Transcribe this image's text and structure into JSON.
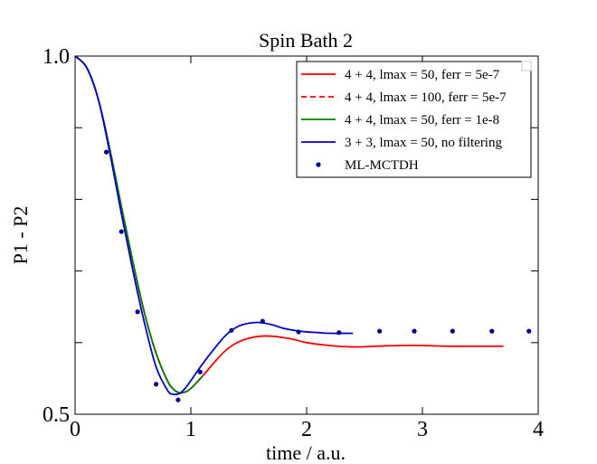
{
  "chart_data": {
    "type": "line",
    "title": "Spin Bath 2",
    "xlabel": "time / a.u.",
    "ylabel": "P1 - P2",
    "xlim": [
      0,
      4
    ],
    "ylim": [
      0.5,
      1.0
    ],
    "grid": false,
    "legend_position": "top-right",
    "x_ticks": [
      0,
      1,
      2,
      3,
      4
    ],
    "x_tick_labels": [
      "0",
      "1",
      "2",
      "3",
      "4"
    ],
    "y_ticks": [
      0.5,
      1.0
    ],
    "y_tick_labels": [
      "0.5",
      "1.0"
    ],
    "y_minor_ticks": [
      0.6,
      0.7,
      0.8,
      0.9
    ],
    "series": [
      {
        "name": "4 + 4, lmax = 50, ferr = 5e-7",
        "color": "#ff0000",
        "style": "solid",
        "x": [
          0,
          0.1,
          0.2,
          0.3,
          0.4,
          0.5,
          0.6,
          0.7,
          0.8,
          0.85,
          0.9,
          0.95,
          1.0,
          1.1,
          1.2,
          1.3,
          1.4,
          1.5,
          1.6,
          1.7,
          1.8,
          1.9,
          2.0,
          2.2,
          2.4,
          2.6,
          2.8,
          3.0,
          3.2,
          3.4,
          3.7
        ],
        "y": [
          1.0,
          0.984,
          0.94,
          0.87,
          0.79,
          0.712,
          0.641,
          0.585,
          0.546,
          0.535,
          0.53,
          0.531,
          0.536,
          0.553,
          0.572,
          0.589,
          0.6,
          0.606,
          0.609,
          0.609,
          0.607,
          0.604,
          0.6,
          0.596,
          0.594,
          0.595,
          0.596,
          0.596,
          0.595,
          0.595,
          0.595
        ]
      },
      {
        "name": "4 + 4, lmax = 100, ferr = 5e-7",
        "color": "#ff0000",
        "style": "dashed",
        "x": [
          0,
          0.1,
          0.2,
          0.3,
          0.4,
          0.5,
          0.6,
          0.7,
          0.8,
          0.85,
          0.9,
          0.95,
          1.0,
          1.1
        ],
        "y": [
          1.0,
          0.984,
          0.94,
          0.87,
          0.79,
          0.712,
          0.641,
          0.585,
          0.546,
          0.535,
          0.53,
          0.531,
          0.536,
          0.553
        ]
      },
      {
        "name": "4 + 4, lmax = 50, ferr = 1e-8",
        "color": "#008000",
        "style": "solid",
        "x": [
          0,
          0.1,
          0.2,
          0.3,
          0.4,
          0.5,
          0.6,
          0.7,
          0.8,
          0.85,
          0.9,
          0.95,
          1.0,
          1.1
        ],
        "y": [
          1.0,
          0.984,
          0.94,
          0.87,
          0.79,
          0.712,
          0.641,
          0.585,
          0.546,
          0.535,
          0.53,
          0.531,
          0.536,
          0.553
        ]
      },
      {
        "name": "3 + 3, lmax = 50, no filtering",
        "color": "#0000cd",
        "style": "solid",
        "x": [
          0,
          0.1,
          0.2,
          0.3,
          0.4,
          0.5,
          0.6,
          0.7,
          0.8,
          0.85,
          0.9,
          0.95,
          1.0,
          1.1,
          1.2,
          1.3,
          1.4,
          1.5,
          1.6,
          1.7,
          1.8,
          1.9,
          2.0,
          2.1,
          2.2,
          2.4
        ],
        "y": [
          1.0,
          0.984,
          0.94,
          0.865,
          0.78,
          0.7,
          0.627,
          0.566,
          0.533,
          0.528,
          0.529,
          0.536,
          0.547,
          0.57,
          0.591,
          0.61,
          0.622,
          0.627,
          0.628,
          0.625,
          0.62,
          0.617,
          0.615,
          0.614,
          0.613,
          0.613
        ]
      },
      {
        "name": "ML-MCTDH",
        "color": "#00008b",
        "style": "markers",
        "x": [
          0.27,
          0.4,
          0.54,
          0.7,
          0.89,
          1.08,
          1.35,
          1.62,
          1.93,
          2.28,
          2.63,
          2.93,
          3.26,
          3.6,
          3.92
        ],
        "y": [
          0.866,
          0.755,
          0.643,
          0.542,
          0.52,
          0.559,
          0.617,
          0.63,
          0.615,
          0.614,
          0.616,
          0.616,
          0.616,
          0.616,
          0.616
        ]
      }
    ]
  }
}
